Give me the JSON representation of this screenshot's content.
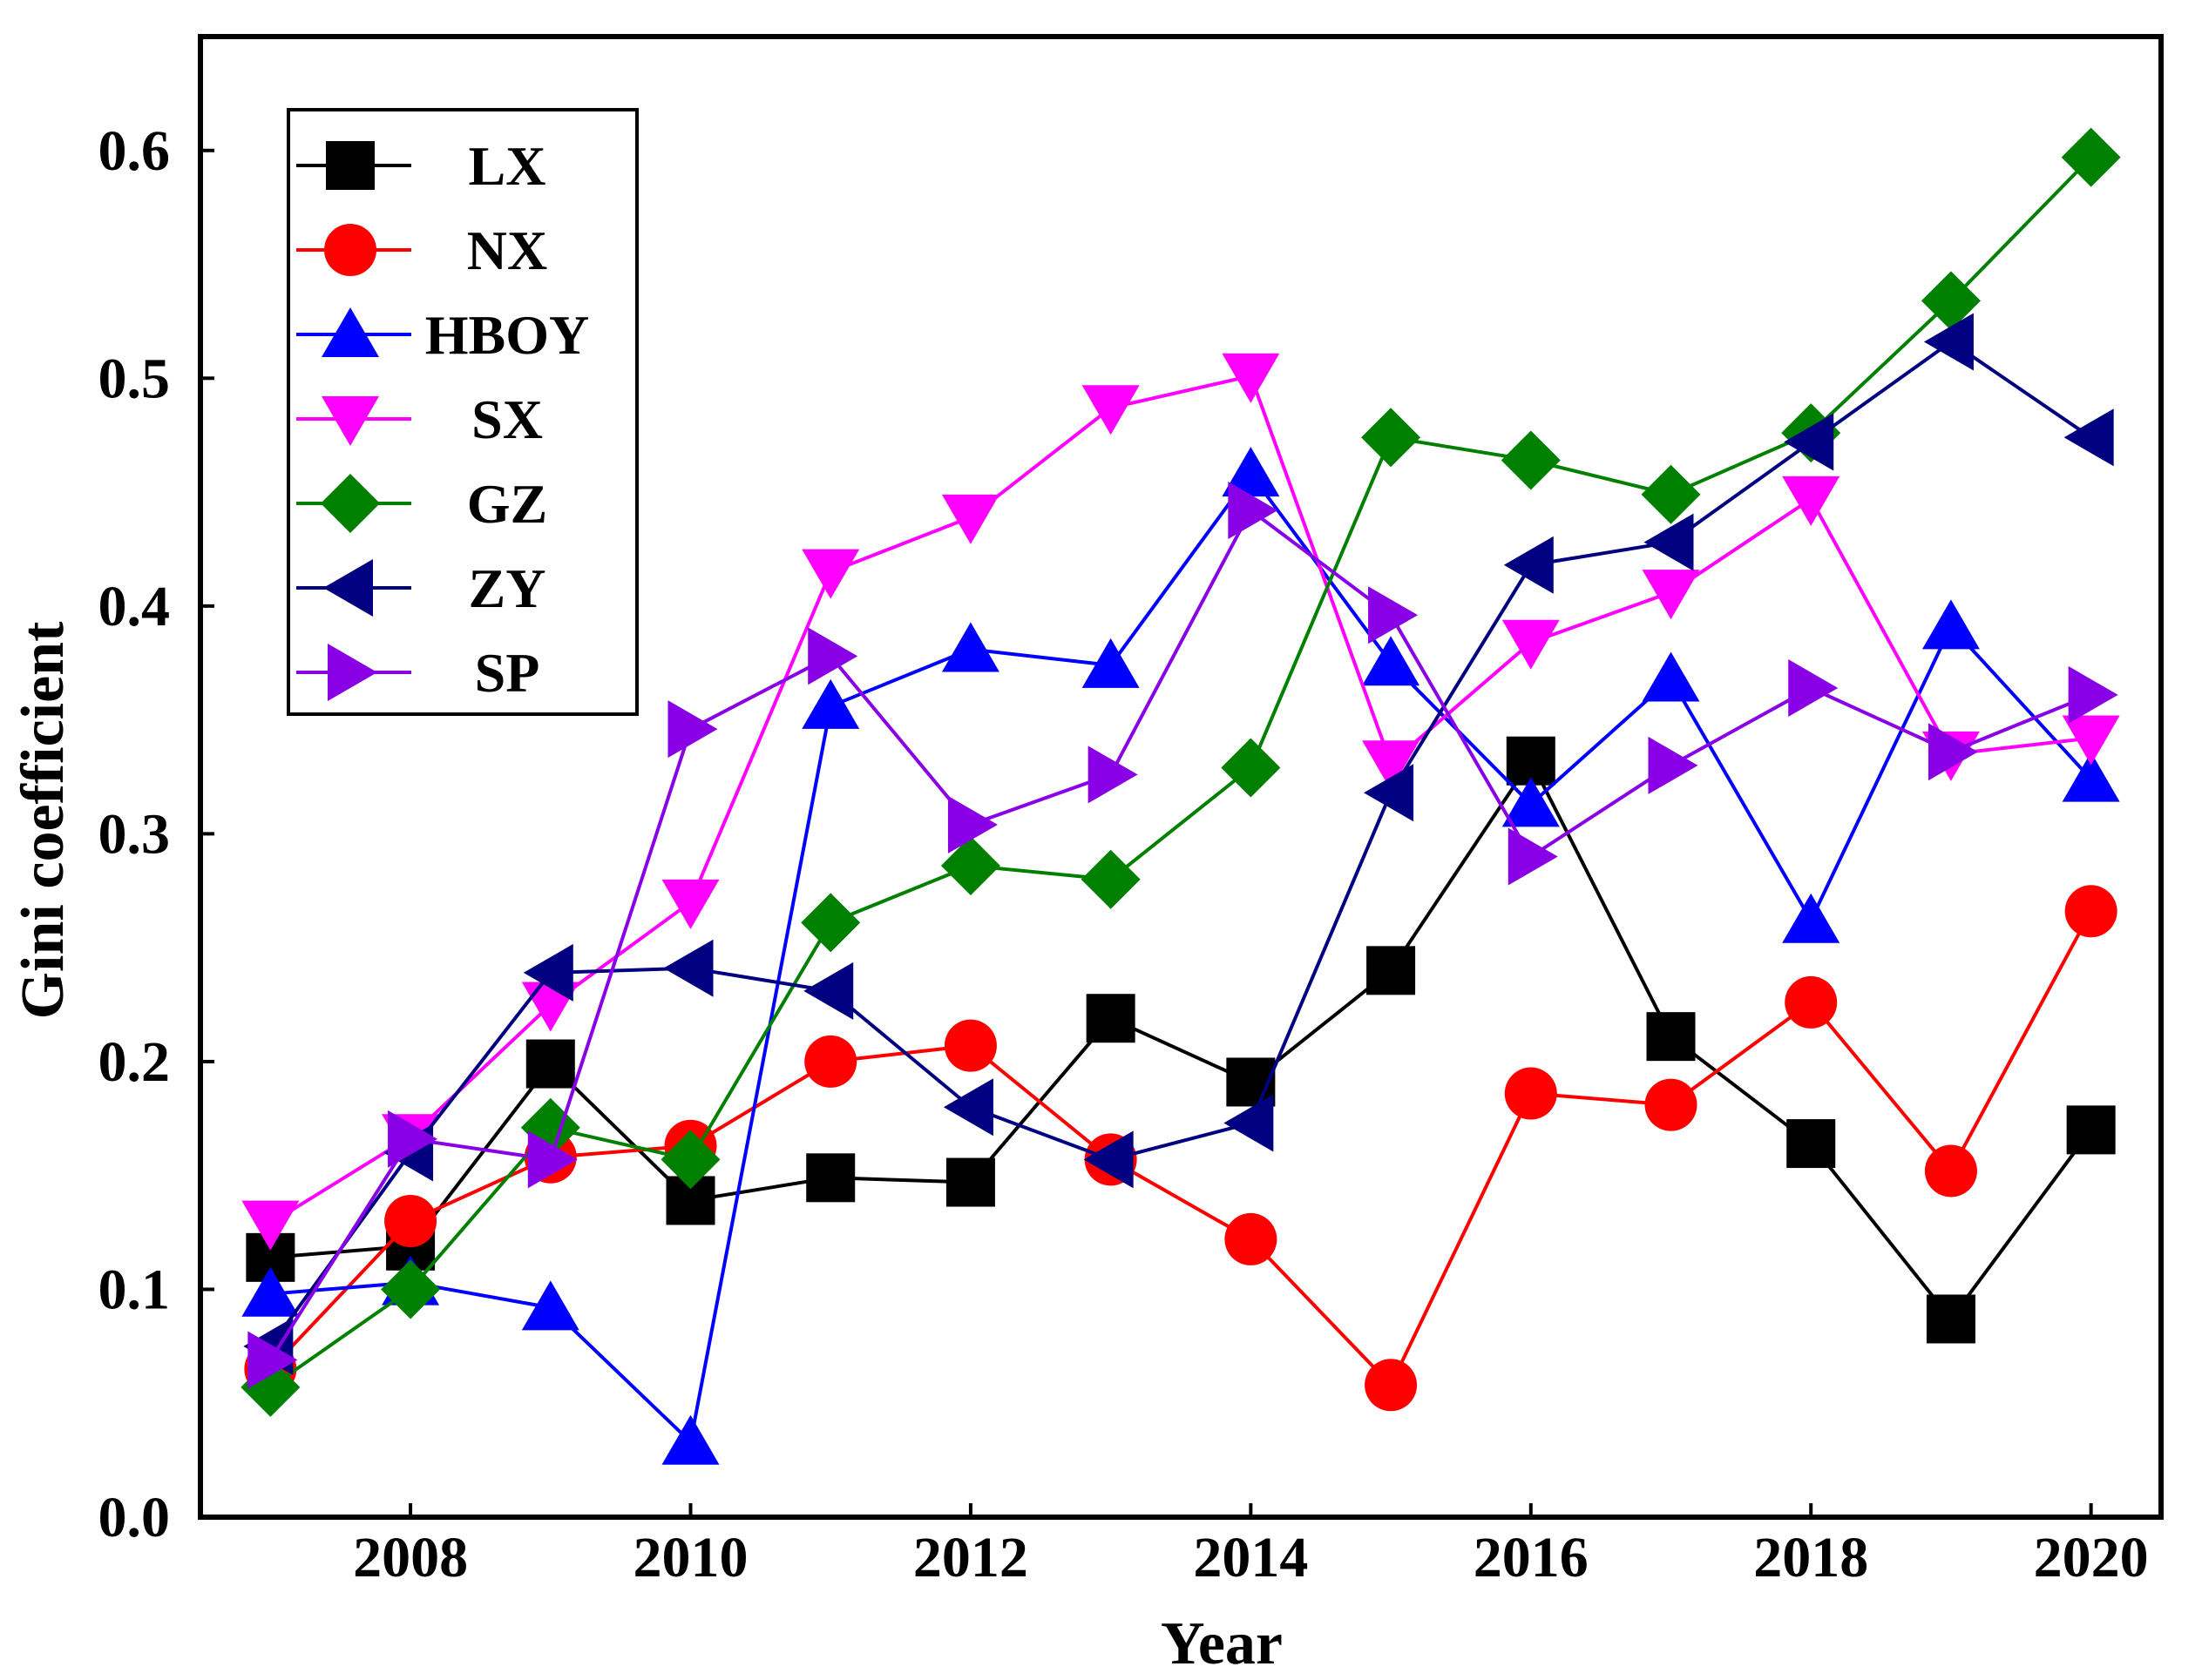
{
  "chart_data": {
    "type": "line",
    "title": "",
    "xlabel": "Year",
    "ylabel": "Gini coefficient",
    "xlim": [
      2006.5,
      2020.5
    ],
    "ylim": [
      0.0,
      0.65
    ],
    "x": [
      2007,
      2008,
      2009,
      2010,
      2011,
      2012,
      2013,
      2014,
      2015,
      2016,
      2017,
      2018,
      2019,
      2020
    ],
    "xticks": [
      2008,
      2010,
      2012,
      2014,
      2016,
      2018,
      2020
    ],
    "xtick_labels": [
      "2008",
      "2010",
      "2012",
      "2014",
      "2016",
      "2018",
      "2020"
    ],
    "yticks": [
      0.0,
      0.1,
      0.2,
      0.3,
      0.4,
      0.5,
      0.6
    ],
    "ytick_labels": [
      "0.0",
      "0.1",
      "0.2",
      "0.3",
      "0.4",
      "0.5",
      "0.6"
    ],
    "grid": false,
    "legend_position": "top-left",
    "series": [
      {
        "name": "LX",
        "color": "#000000",
        "marker": "square",
        "values": [
          0.114,
          0.119,
          0.199,
          0.139,
          0.149,
          0.147,
          0.219,
          0.191,
          0.24,
          0.332,
          0.211,
          0.164,
          0.087,
          0.17
        ]
      },
      {
        "name": "NX",
        "color": "#ff0000",
        "marker": "circle",
        "values": [
          0.065,
          0.13,
          0.158,
          0.163,
          0.2,
          0.207,
          0.157,
          0.122,
          0.058,
          0.186,
          0.181,
          0.226,
          0.152,
          0.266
        ]
      },
      {
        "name": "HBOY",
        "color": "#0000ff",
        "marker": "triangle-up",
        "values": [
          0.098,
          0.103,
          0.092,
          0.033,
          0.356,
          0.381,
          0.374,
          0.458,
          0.375,
          0.313,
          0.368,
          0.262,
          0.391,
          0.324
        ]
      },
      {
        "name": "SX",
        "color": "#ff00ff",
        "marker": "triangle-down",
        "values": [
          0.129,
          0.167,
          0.225,
          0.27,
          0.415,
          0.439,
          0.487,
          0.501,
          0.331,
          0.384,
          0.406,
          0.447,
          0.335,
          0.342
        ]
      },
      {
        "name": "GZ",
        "color": "#008000",
        "marker": "diamond",
        "values": [
          0.057,
          0.1,
          0.171,
          0.157,
          0.261,
          0.286,
          0.28,
          0.329,
          0.474,
          0.464,
          0.449,
          0.476,
          0.534,
          0.597
        ]
      },
      {
        "name": "ZY",
        "color": "#000080",
        "marker": "triangle-left",
        "values": [
          0.075,
          0.16,
          0.239,
          0.241,
          0.231,
          0.18,
          0.157,
          0.173,
          0.318,
          0.418,
          0.428,
          0.472,
          0.516,
          0.474
        ]
      },
      {
        "name": "SP",
        "color": "#8a00e6",
        "marker": "triangle-right",
        "values": [
          0.069,
          0.166,
          0.157,
          0.346,
          0.378,
          0.304,
          0.326,
          0.442,
          0.396,
          0.29,
          0.33,
          0.364,
          0.336,
          0.361
        ]
      }
    ]
  }
}
